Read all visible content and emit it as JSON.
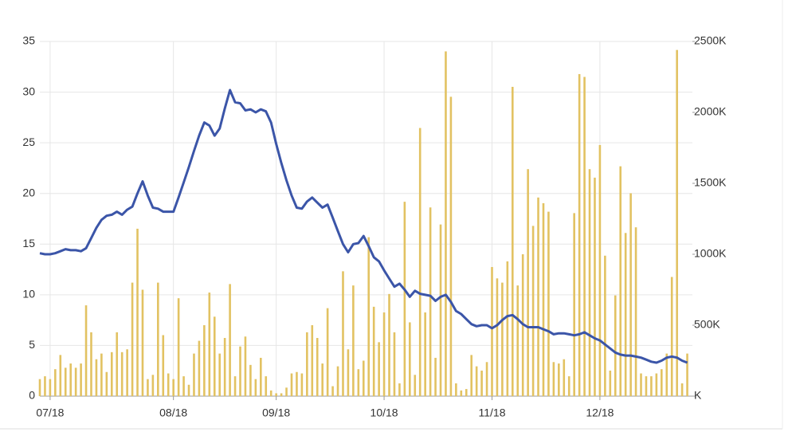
{
  "chart_data": {
    "type": "combo",
    "x": [
      0,
      1,
      2,
      3,
      4,
      5,
      6,
      7,
      8,
      9,
      10,
      11,
      12,
      13,
      14,
      15,
      16,
      17,
      18,
      19,
      20,
      21,
      22,
      23,
      24,
      25,
      26,
      27,
      28,
      29,
      30,
      31,
      32,
      33,
      34,
      35,
      36,
      37,
      38,
      39,
      40,
      41,
      42,
      43,
      44,
      45,
      46,
      47,
      48,
      49,
      50,
      51,
      52,
      53,
      54,
      55,
      56,
      57,
      58,
      59,
      60,
      61,
      62,
      63,
      64,
      65,
      66,
      67,
      68,
      69,
      70,
      71,
      72,
      73,
      74,
      75,
      76,
      77,
      78,
      79,
      80,
      81,
      82,
      83,
      84,
      85,
      86,
      87,
      88,
      89,
      90,
      91,
      92,
      93,
      94,
      95,
      96,
      97,
      98,
      99,
      100,
      101,
      102,
      103,
      104,
      105,
      106,
      107,
      108,
      109,
      110,
      111,
      112,
      113,
      114,
      115,
      116,
      117,
      118,
      119,
      120,
      121,
      122,
      123,
      124,
      125,
      126
    ],
    "xlim": [
      0,
      127
    ],
    "xticks": [
      {
        "value": 2,
        "label": "07/18"
      },
      {
        "value": 26,
        "label": "08/18"
      },
      {
        "value": 46,
        "label": "09/18"
      },
      {
        "value": 67,
        "label": "10/18"
      },
      {
        "value": 88,
        "label": "11/18"
      },
      {
        "value": 109,
        "label": "12/18"
      }
    ],
    "ylim": [
      0,
      35
    ],
    "yticks": [
      0,
      5,
      10,
      15,
      20,
      25,
      30,
      35
    ],
    "y2lim": [
      0,
      2500
    ],
    "y2ticks": [
      {
        "value": 0,
        "label": "K"
      },
      {
        "value": 500,
        "label": "500K"
      },
      {
        "value": 1000,
        "label": "1000K"
      },
      {
        "value": 1500,
        "label": "1500K"
      },
      {
        "value": 2000,
        "label": "2000K"
      },
      {
        "value": 2500,
        "label": "2500K"
      }
    ],
    "grid": true,
    "series": [
      {
        "kind": "bar",
        "axis": "y2",
        "color": "#e2c262",
        "values": [
          120,
          140,
          120,
          190,
          290,
          200,
          230,
          200,
          230,
          640,
          450,
          260,
          300,
          170,
          310,
          450,
          310,
          330,
          800,
          1180,
          750,
          120,
          150,
          800,
          430,
          160,
          120,
          690,
          140,
          80,
          300,
          390,
          500,
          730,
          560,
          300,
          410,
          790,
          140,
          350,
          420,
          220,
          120,
          270,
          140,
          40,
          20,
          20,
          60,
          160,
          170,
          160,
          450,
          500,
          410,
          230,
          620,
          70,
          210,
          880,
          330,
          780,
          190,
          250,
          1120,
          630,
          380,
          590,
          720,
          450,
          90,
          1370,
          520,
          150,
          1890,
          590,
          1330,
          270,
          1210,
          2430,
          2110,
          90,
          40,
          50,
          290,
          210,
          180,
          240,
          910,
          830,
          800,
          950,
          2180,
          780,
          1000,
          1600,
          1200,
          1400,
          1360,
          1300,
          240,
          230,
          260,
          140,
          1290,
          2270,
          2250,
          1600,
          1540,
          1770,
          990,
          180,
          710,
          1620,
          1150,
          1430,
          1190,
          160,
          140,
          140,
          160,
          190,
          300,
          840,
          2440,
          90,
          300
        ]
      },
      {
        "kind": "line",
        "axis": "y",
        "color": "#3b55a8",
        "values": [
          14.1,
          14.0,
          14.0,
          14.1,
          14.3,
          14.5,
          14.4,
          14.4,
          14.3,
          14.6,
          15.6,
          16.6,
          17.4,
          17.8,
          17.9,
          18.2,
          17.9,
          18.4,
          18.7,
          20.0,
          21.2,
          19.8,
          18.6,
          18.5,
          18.2,
          18.2,
          18.2,
          19.6,
          21.1,
          22.6,
          24.2,
          25.7,
          27.0,
          26.7,
          25.7,
          26.4,
          28.4,
          30.2,
          29.0,
          28.9,
          28.2,
          28.3,
          28.0,
          28.3,
          28.1,
          27.0,
          24.9,
          23.0,
          21.3,
          19.8,
          18.6,
          18.5,
          19.2,
          19.6,
          19.1,
          18.6,
          18.9,
          17.6,
          16.3,
          15.0,
          14.2,
          15.0,
          15.1,
          15.8,
          14.8,
          13.7,
          13.3,
          12.4,
          11.6,
          10.8,
          11.1,
          10.5,
          9.8,
          10.4,
          10.1,
          10.0,
          9.9,
          9.4,
          9.8,
          10.0,
          9.3,
          8.4,
          8.1,
          7.6,
          7.1,
          6.9,
          7.0,
          7.0,
          6.7,
          7.0,
          7.5,
          7.9,
          8.0,
          7.6,
          7.1,
          6.8,
          6.8,
          6.8,
          6.6,
          6.4,
          6.1,
          6.2,
          6.2,
          6.1,
          6.0,
          6.1,
          6.3,
          6.0,
          5.7,
          5.5,
          5.1,
          4.7,
          4.3,
          4.1,
          4.0,
          4.0,
          3.9,
          3.8,
          3.6,
          3.4,
          3.3,
          3.5,
          3.8,
          3.9,
          3.8,
          3.5,
          3.3
        ]
      }
    ]
  }
}
